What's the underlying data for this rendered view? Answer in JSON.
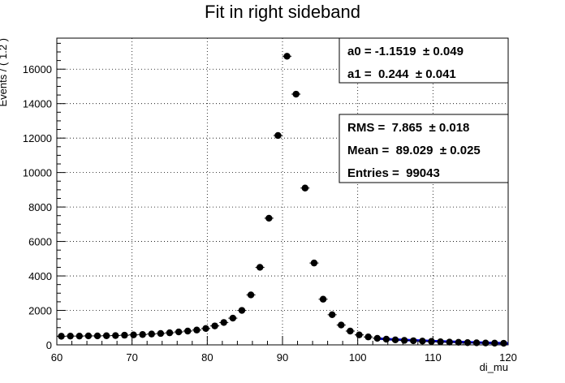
{
  "chart_data": {
    "type": "scatter",
    "title": "Fit in right sideband",
    "xlabel": "di_mu",
    "ylabel": "Events / ( 1.2 )",
    "xlim": [
      60,
      120
    ],
    "ylim": [
      0,
      17800
    ],
    "grid": true,
    "x_ticks": [
      60,
      70,
      80,
      90,
      100,
      110,
      120
    ],
    "y_ticks": [
      0,
      2000,
      4000,
      6000,
      8000,
      10000,
      12000,
      14000,
      16000
    ],
    "bin_width": 1.2,
    "series": [
      {
        "type": "points",
        "color": "#000000",
        "x": [
          60.6,
          61.8,
          63.0,
          64.2,
          65.4,
          66.6,
          67.8,
          69.0,
          70.2,
          71.4,
          72.6,
          73.8,
          75.0,
          76.2,
          77.4,
          78.6,
          79.8,
          81.0,
          82.2,
          83.4,
          84.6,
          85.8,
          87.0,
          88.2,
          89.4,
          90.6,
          91.8,
          93.0,
          94.2,
          95.4,
          96.6,
          97.8,
          99.0,
          100.2,
          101.4,
          102.6,
          103.8,
          105.0,
          106.2,
          107.4,
          108.6,
          109.8,
          111.0,
          112.2,
          113.4,
          114.6,
          115.8,
          117.0,
          118.2,
          119.4
        ],
        "y": [
          500,
          510,
          510,
          520,
          520,
          530,
          540,
          560,
          580,
          600,
          630,
          660,
          700,
          750,
          800,
          860,
          950,
          1100,
          1300,
          1550,
          2000,
          2900,
          4500,
          7350,
          12150,
          16750,
          14550,
          9100,
          4750,
          2650,
          1750,
          1150,
          800,
          580,
          460,
          380,
          330,
          290,
          260,
          240,
          220,
          200,
          180,
          160,
          150,
          130,
          120,
          110,
          100,
          90
        ]
      },
      {
        "type": "fit",
        "color": "#0000ff",
        "x": [
          102.5,
          104,
          106,
          108,
          110,
          112,
          114,
          116,
          118,
          120
        ],
        "y": [
          370,
          330,
          290,
          255,
          220,
          190,
          160,
          135,
          110,
          90
        ]
      }
    ]
  },
  "stats_fit": {
    "line1": "a0 = -1.1519  ± 0.049",
    "line2": "a1 =  0.244  ± 0.041"
  },
  "stats_hist": {
    "line1": "RMS =  7.865  ± 0.018",
    "line2": "Mean =  89.029  ± 0.025",
    "line3": "Entries =  99043"
  }
}
